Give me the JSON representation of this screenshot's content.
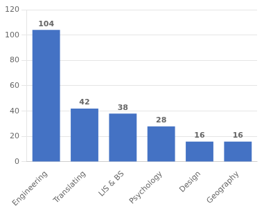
{
  "chart_data": {
    "type": "bar",
    "categories": [
      "Engineering",
      "Translating",
      "LIS & BS",
      "Psychology",
      "Design",
      "Geography"
    ],
    "values": [
      104,
      42,
      38,
      28,
      16,
      16
    ],
    "color": "#4472c4",
    "ylim": [
      0,
      120
    ],
    "yticks": [
      0,
      20,
      40,
      60,
      80,
      100,
      120
    ],
    "grid": true,
    "data_labels": true
  }
}
